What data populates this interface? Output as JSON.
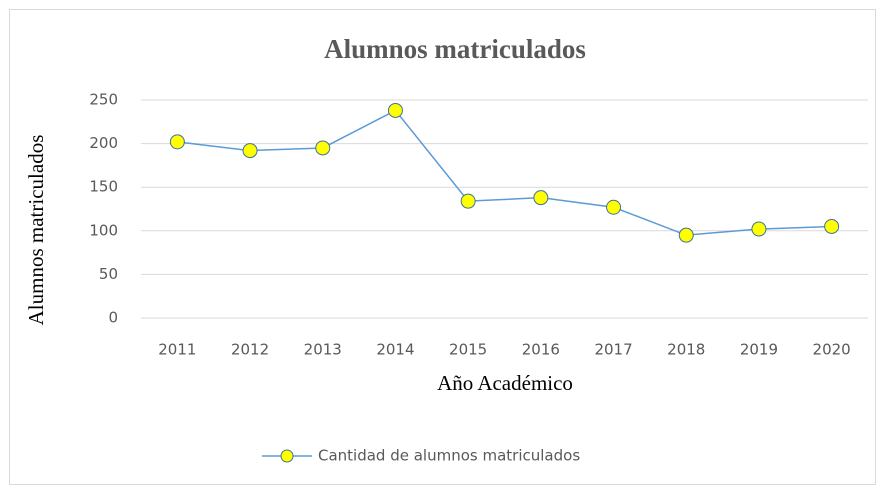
{
  "chart_data": {
    "type": "line",
    "title": "Alumnos matriculados",
    "xlabel": "Año Académico",
    "ylabel": "Alumnos matriculados",
    "categories": [
      "2011",
      "2012",
      "2013",
      "2014",
      "2015",
      "2016",
      "2017",
      "2018",
      "2019",
      "2020"
    ],
    "series": [
      {
        "name": "Cantidad de alumnos matriculados",
        "color": "#5b9bd5",
        "marker_color": "#ffff00",
        "values": [
          202,
          192,
          195,
          238,
          134,
          138,
          127,
          95,
          102,
          105
        ]
      }
    ],
    "ylim": [
      0,
      250
    ],
    "yticks": [
      0,
      50,
      100,
      150,
      200,
      250
    ],
    "grid": true,
    "legend": "bottom"
  }
}
